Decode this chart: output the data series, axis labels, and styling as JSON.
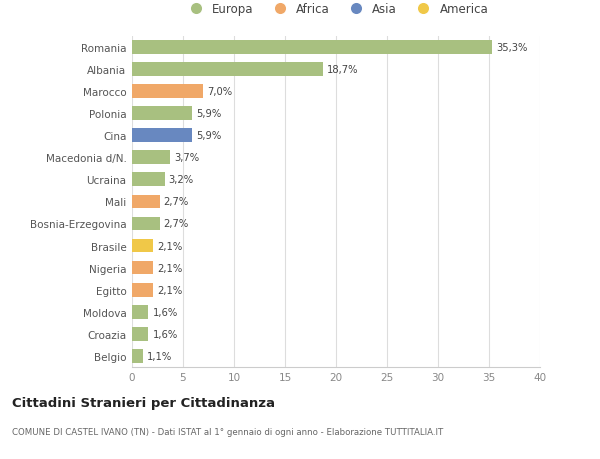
{
  "categories": [
    "Romania",
    "Albania",
    "Marocco",
    "Polonia",
    "Cina",
    "Macedonia d/N.",
    "Ucraina",
    "Mali",
    "Bosnia-Erzegovina",
    "Brasile",
    "Nigeria",
    "Egitto",
    "Moldova",
    "Croazia",
    "Belgio"
  ],
  "values": [
    35.3,
    18.7,
    7.0,
    5.9,
    5.9,
    3.7,
    3.2,
    2.7,
    2.7,
    2.1,
    2.1,
    2.1,
    1.6,
    1.6,
    1.1
  ],
  "labels": [
    "35,3%",
    "18,7%",
    "7,0%",
    "5,9%",
    "5,9%",
    "3,7%",
    "3,2%",
    "2,7%",
    "2,7%",
    "2,1%",
    "2,1%",
    "2,1%",
    "1,6%",
    "1,6%",
    "1,1%"
  ],
  "colors": [
    "#a8c080",
    "#a8c080",
    "#f0a868",
    "#a8c080",
    "#6888c0",
    "#a8c080",
    "#a8c080",
    "#f0a868",
    "#a8c080",
    "#f0c848",
    "#f0a868",
    "#f0a868",
    "#a8c080",
    "#a8c080",
    "#a8c080"
  ],
  "legend": [
    {
      "label": "Europa",
      "color": "#a8c080"
    },
    {
      "label": "Africa",
      "color": "#f0a868"
    },
    {
      "label": "Asia",
      "color": "#6888c0"
    },
    {
      "label": "America",
      "color": "#f0c848"
    }
  ],
  "xlim": [
    0,
    40
  ],
  "xticks": [
    0,
    5,
    10,
    15,
    20,
    25,
    30,
    35,
    40
  ],
  "title1": "Cittadini Stranieri per Cittadinanza",
  "title2": "COMUNE DI CASTEL IVANO (TN) - Dati ISTAT al 1° gennaio di ogni anno - Elaborazione TUTTITALIA.IT",
  "bg_color": "#ffffff"
}
